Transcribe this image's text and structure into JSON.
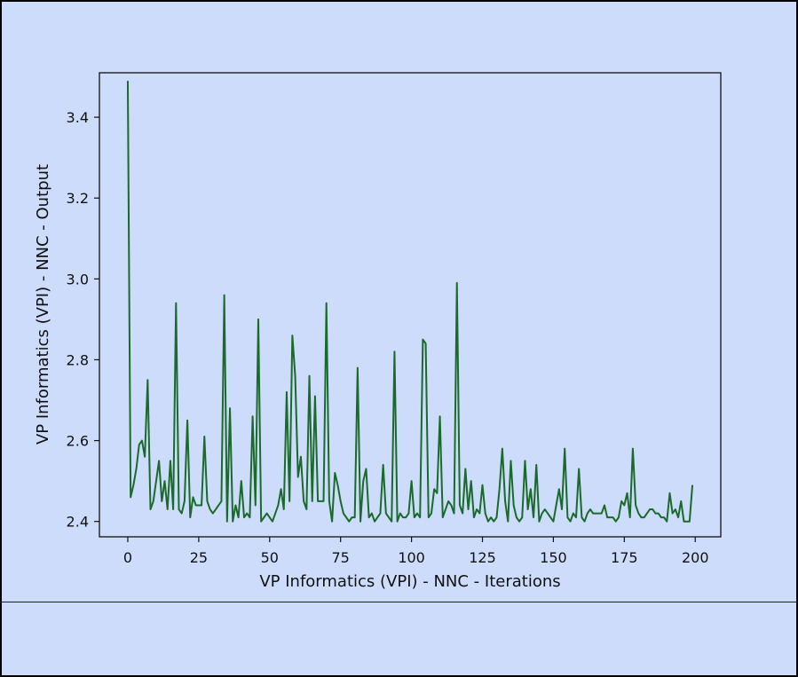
{
  "chart_data": {
    "type": "line",
    "title": "",
    "xlabel": "VP Informatics (VPI) - NNC - Iterations",
    "ylabel": "VP Informatics (VPI) - NNC - Output",
    "xlim": [
      -10,
      209
    ],
    "ylim": [
      2.362,
      3.51
    ],
    "xticks": [
      0,
      25,
      50,
      75,
      100,
      125,
      150,
      175,
      200
    ],
    "yticks": [
      2.4,
      2.6,
      2.8,
      3.0,
      3.2,
      3.4
    ],
    "xtick_labels": [
      "0",
      "25",
      "50",
      "75",
      "100",
      "125",
      "150",
      "175",
      "200"
    ],
    "ytick_labels": [
      "2.4",
      "2.6",
      "2.8",
      "3.0",
      "3.2",
      "3.4"
    ],
    "grid": false,
    "line_color": "#1a6b2a",
    "plot_background": "#ccdcfa",
    "series": [
      {
        "name": "",
        "x": [
          0,
          1,
          2,
          3,
          4,
          5,
          6,
          7,
          8,
          9,
          10,
          11,
          12,
          13,
          14,
          15,
          16,
          17,
          18,
          19,
          20,
          21,
          22,
          23,
          24,
          25,
          26,
          27,
          28,
          29,
          30,
          31,
          32,
          33,
          34,
          35,
          36,
          37,
          38,
          39,
          40,
          41,
          42,
          43,
          44,
          45,
          46,
          47,
          48,
          49,
          50,
          51,
          52,
          53,
          54,
          55,
          56,
          57,
          58,
          59,
          60,
          61,
          62,
          63,
          64,
          65,
          66,
          67,
          68,
          69,
          70,
          71,
          72,
          73,
          74,
          75,
          76,
          77,
          78,
          79,
          80,
          81,
          82,
          83,
          84,
          85,
          86,
          87,
          88,
          89,
          90,
          91,
          92,
          93,
          94,
          95,
          96,
          97,
          98,
          99,
          100,
          101,
          102,
          103,
          104,
          105,
          106,
          107,
          108,
          109,
          110,
          111,
          112,
          113,
          114,
          115,
          116,
          117,
          118,
          119,
          120,
          121,
          122,
          123,
          124,
          125,
          126,
          127,
          128,
          129,
          130,
          131,
          132,
          133,
          134,
          135,
          136,
          137,
          138,
          139,
          140,
          141,
          142,
          143,
          144,
          145,
          146,
          147,
          148,
          149,
          150,
          151,
          152,
          153,
          154,
          155,
          156,
          157,
          158,
          159,
          160,
          161,
          162,
          163,
          164,
          165,
          166,
          167,
          168,
          169,
          170,
          171,
          172,
          173,
          174,
          175,
          176,
          177,
          178,
          179,
          180,
          181,
          182,
          183,
          184,
          185,
          186,
          187,
          188,
          189,
          190,
          191,
          192,
          193,
          194,
          195,
          196,
          197,
          198,
          199
        ],
        "values": [
          3.49,
          2.46,
          2.49,
          2.53,
          2.59,
          2.6,
          2.56,
          2.75,
          2.43,
          2.45,
          2.5,
          2.55,
          2.45,
          2.5,
          2.43,
          2.55,
          2.43,
          2.94,
          2.43,
          2.42,
          2.45,
          2.65,
          2.41,
          2.46,
          2.44,
          2.44,
          2.44,
          2.61,
          2.45,
          2.43,
          2.42,
          2.43,
          2.44,
          2.45,
          2.96,
          2.4,
          2.68,
          2.4,
          2.44,
          2.41,
          2.5,
          2.41,
          2.42,
          2.41,
          2.66,
          2.44,
          2.9,
          2.4,
          2.41,
          2.42,
          2.41,
          2.4,
          2.42,
          2.44,
          2.48,
          2.43,
          2.72,
          2.45,
          2.86,
          2.76,
          2.51,
          2.56,
          2.45,
          2.43,
          2.76,
          2.45,
          2.71,
          2.45,
          2.45,
          2.45,
          2.94,
          2.45,
          2.4,
          2.52,
          2.49,
          2.45,
          2.42,
          2.41,
          2.4,
          2.41,
          2.41,
          2.78,
          2.4,
          2.5,
          2.53,
          2.41,
          2.42,
          2.4,
          2.41,
          2.42,
          2.54,
          2.42,
          2.41,
          2.4,
          2.82,
          2.4,
          2.42,
          2.41,
          2.41,
          2.42,
          2.5,
          2.41,
          2.42,
          2.41,
          2.85,
          2.84,
          2.41,
          2.42,
          2.48,
          2.47,
          2.66,
          2.41,
          2.43,
          2.45,
          2.44,
          2.42,
          2.99,
          2.44,
          2.42,
          2.53,
          2.43,
          2.5,
          2.41,
          2.43,
          2.42,
          2.49,
          2.42,
          2.4,
          2.41,
          2.4,
          2.41,
          2.48,
          2.58,
          2.45,
          2.4,
          2.55,
          2.44,
          2.41,
          2.4,
          2.41,
          2.55,
          2.43,
          2.48,
          2.41,
          2.54,
          2.4,
          2.42,
          2.43,
          2.42,
          2.41,
          2.4,
          2.44,
          2.48,
          2.43,
          2.58,
          2.41,
          2.4,
          2.42,
          2.41,
          2.53,
          2.41,
          2.4,
          2.42,
          2.43,
          2.42,
          2.42,
          2.42,
          2.42,
          2.44,
          2.41,
          2.41,
          2.41,
          2.4,
          2.41,
          2.45,
          2.44,
          2.47,
          2.41,
          2.58,
          2.44,
          2.42,
          2.41,
          2.41,
          2.42,
          2.43,
          2.43,
          2.42,
          2.42,
          2.41,
          2.41,
          2.4,
          2.47,
          2.42,
          2.43,
          2.41,
          2.45,
          2.4,
          2.4,
          2.4,
          2.49
        ]
      }
    ]
  }
}
